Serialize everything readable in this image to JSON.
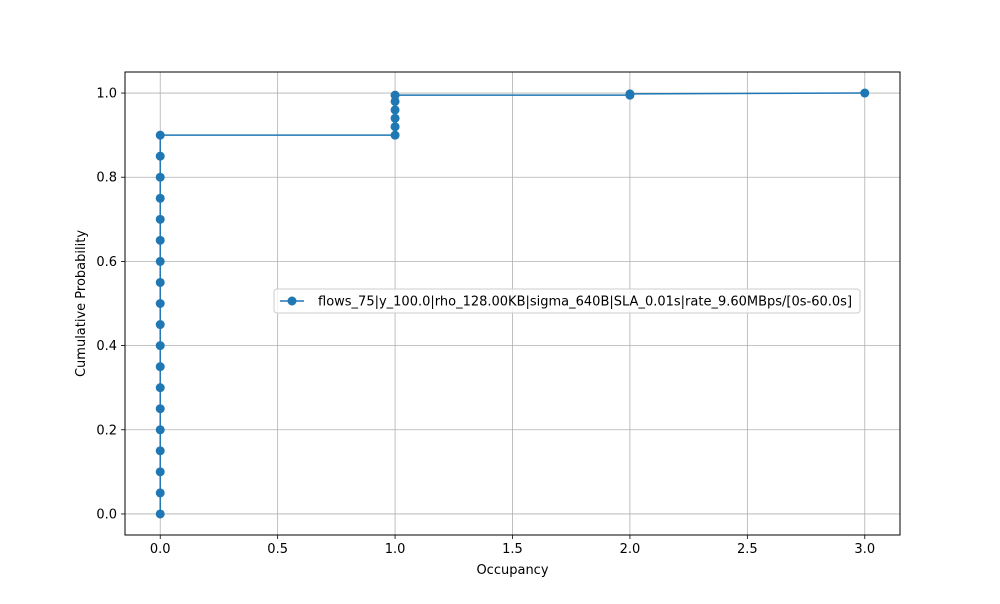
{
  "chart_data": {
    "type": "line",
    "title": "",
    "xlabel": "Occupancy",
    "ylabel": "Cumulative Probability",
    "xlim": [
      -0.15,
      3.15
    ],
    "ylim": [
      -0.05,
      1.05
    ],
    "x_ticks": [
      0.0,
      0.5,
      1.0,
      1.5,
      2.0,
      2.5,
      3.0
    ],
    "x_tick_labels": [
      "0.0",
      "0.5",
      "1.0",
      "1.5",
      "2.0",
      "2.5",
      "3.0"
    ],
    "y_ticks": [
      0.0,
      0.2,
      0.4,
      0.6,
      0.8,
      1.0
    ],
    "y_tick_labels": [
      "0.0",
      "0.2",
      "0.4",
      "0.6",
      "0.8",
      "1.0"
    ],
    "grid": true,
    "legend_position": "center-right",
    "series": [
      {
        "name": "flows_75|y_100.0|rho_128.00KB|sigma_640B|SLA_0.01s|rate_9.60MBps/[0s-60.0s]",
        "color": "#1f77b4",
        "marker": "circle",
        "points": [
          [
            0,
            0.0
          ],
          [
            0,
            0.05
          ],
          [
            0,
            0.1
          ],
          [
            0,
            0.15
          ],
          [
            0,
            0.2
          ],
          [
            0,
            0.25
          ],
          [
            0,
            0.3
          ],
          [
            0,
            0.35
          ],
          [
            0,
            0.4
          ],
          [
            0,
            0.45
          ],
          [
            0,
            0.5
          ],
          [
            0,
            0.55
          ],
          [
            0,
            0.6
          ],
          [
            0,
            0.65
          ],
          [
            0,
            0.7
          ],
          [
            0,
            0.75
          ],
          [
            0,
            0.8
          ],
          [
            0,
            0.85
          ],
          [
            0,
            0.9
          ],
          [
            1,
            0.9
          ],
          [
            1,
            0.92
          ],
          [
            1,
            0.94
          ],
          [
            1,
            0.96
          ],
          [
            1,
            0.98
          ],
          [
            1,
            0.995
          ],
          [
            2,
            0.995
          ],
          [
            2,
            0.998
          ],
          [
            3,
            1.0
          ]
        ]
      }
    ]
  }
}
